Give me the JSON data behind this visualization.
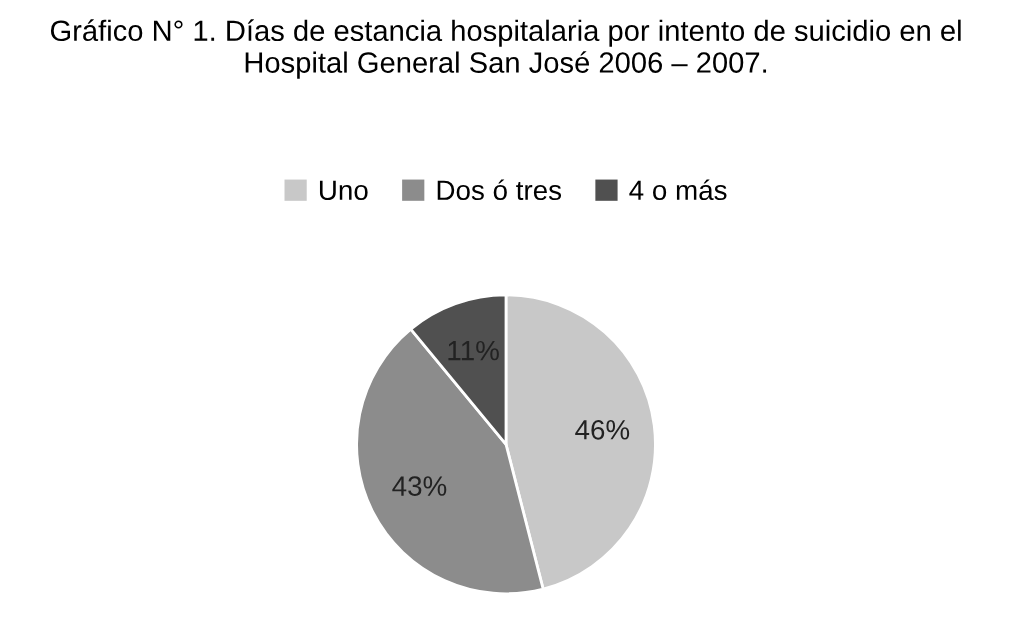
{
  "chart_data": {
    "type": "pie",
    "title": "Gráfico N° 1. Días de estancia hospitalaria por intento de suicidio en el Hospital General San José 2006 – 2007.",
    "categories": [
      "Uno",
      "Dos ó tres",
      "4 o más"
    ],
    "values": [
      46,
      43,
      11
    ],
    "colors": [
      "#c8c8c8",
      "#8c8c8c",
      "#505050"
    ],
    "value_labels": [
      "46%",
      "43%",
      "11%"
    ],
    "legend": "top"
  }
}
